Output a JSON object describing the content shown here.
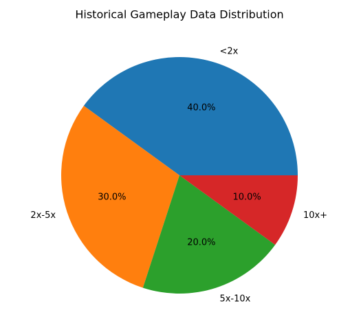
{
  "chart_data": {
    "type": "pie",
    "title": "Historical Gameplay Data Distribution",
    "categories": [
      "<2x",
      "2x-5x",
      "5x-10x",
      "10x+"
    ],
    "values": [
      40,
      30,
      20,
      10
    ],
    "value_labels": [
      "40.0%",
      "30.0%",
      "20.0%",
      "10.0%"
    ],
    "colors": [
      "#1f77b4",
      "#ff7f0e",
      "#2ca02c",
      "#d62728"
    ]
  }
}
